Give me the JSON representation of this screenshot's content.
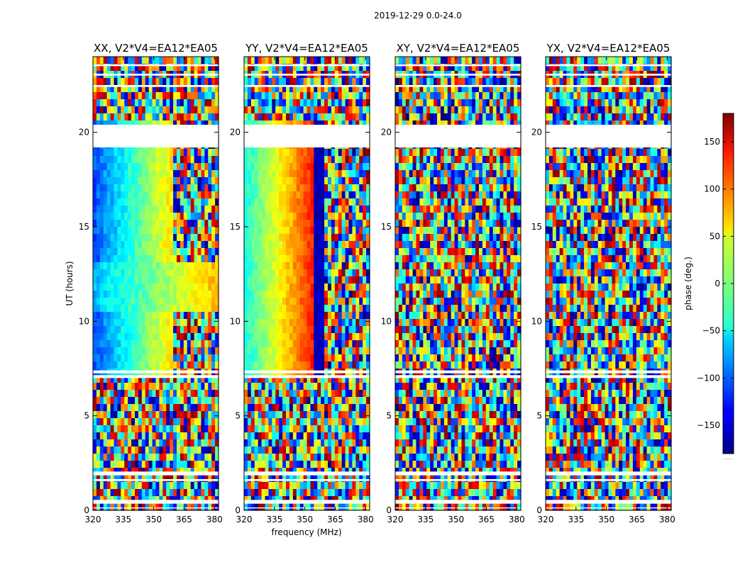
{
  "chart_data": {
    "type": "heatmap",
    "suptitle": "2019-12-29 0.0-24.0",
    "xlabel": "frequency (MHz)",
    "ylabel": "UT (hours)",
    "xlim": [
      320,
      382
    ],
    "ylim": [
      0,
      24
    ],
    "xticks": [
      320,
      335,
      350,
      365,
      380
    ],
    "yticks": [
      0,
      5,
      10,
      15,
      20
    ],
    "panels": [
      {
        "title": "XX, V2*V4=EA12*EA05",
        "pattern": "xx"
      },
      {
        "title": "YY, V2*V4=EA12*EA05",
        "pattern": "yy"
      },
      {
        "title": "XY, V2*V4=EA12*EA05",
        "pattern": "cross"
      },
      {
        "title": "YX, V2*V4=EA12*EA05",
        "pattern": "cross"
      }
    ],
    "flagged_hours": [
      [
        0.1,
        0.15
      ],
      [
        0.35,
        0.55
      ],
      [
        1.55,
        1.65
      ],
      [
        1.85,
        2.05
      ],
      [
        7.0,
        7.15
      ],
      [
        7.25,
        7.4
      ],
      [
        19.2,
        20.4
      ],
      [
        22.4,
        22.5
      ],
      [
        23.0,
        23.1
      ],
      [
        23.5,
        23.6
      ]
    ],
    "colorbar": {
      "label": "phase (deg.)",
      "ticks": [
        150,
        100,
        50,
        0,
        -50,
        -100,
        -150
      ],
      "range": [
        -180,
        180
      ],
      "extra_label": "....."
    }
  }
}
